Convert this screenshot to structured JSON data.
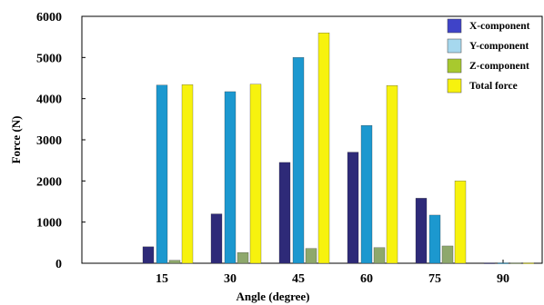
{
  "chart_data": {
    "type": "bar",
    "xlabel": "Angle (degree)",
    "ylabel": "Force (N)",
    "ylim": [
      0,
      6000
    ],
    "yticks": [
      "0",
      "1000",
      "2000",
      "3000",
      "4000",
      "5000",
      "6000"
    ],
    "categories": [
      "15",
      "30",
      "45",
      "60",
      "75",
      "90"
    ],
    "grid": false,
    "legend_position": "top-right",
    "series": [
      {
        "name": "X-component",
        "color": "#2e2a78",
        "values": [
          400,
          1200,
          2450,
          2700,
          1580,
          10
        ]
      },
      {
        "name": "Y-component",
        "color": "#1c98cf",
        "values": [
          4330,
          4170,
          5000,
          3350,
          1170,
          10
        ]
      },
      {
        "name": "Z-component",
        "color": "#8ea86c",
        "values": [
          70,
          260,
          360,
          380,
          420,
          10
        ]
      },
      {
        "name": "Total force",
        "color": "#f7f20e",
        "values": [
          4340,
          4350,
          5600,
          4320,
          2000,
          10
        ]
      }
    ],
    "legend_colors": [
      "#3f43c8",
      "#a6d8ee",
      "#a8c92e",
      "#f7f20e"
    ]
  }
}
